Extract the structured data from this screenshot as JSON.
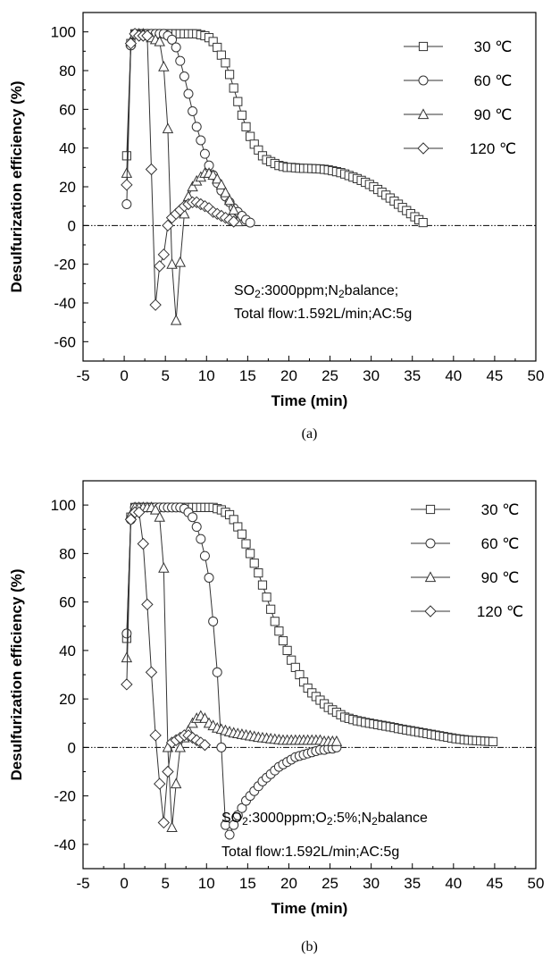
{
  "chart_data": [
    {
      "type": "line",
      "panel_label": "(a)",
      "xlabel": "Time (min)",
      "ylabel": "Desulfurization efficiency (%)",
      "xlim": [
        -5,
        50
      ],
      "ylim": [
        -70,
        110
      ],
      "xticks": [
        -5,
        0,
        5,
        10,
        15,
        20,
        25,
        30,
        35,
        40,
        45,
        50
      ],
      "yticks": [
        -60,
        -40,
        -20,
        0,
        20,
        40,
        60,
        80,
        100
      ],
      "zero_line": true,
      "legend_position": "top-right",
      "annotation": {
        "lines": [
          [
            {
              "t": "SO"
            },
            {
              "t": "2",
              "sub": true
            },
            {
              "t": ":3000ppm;N"
            },
            {
              "t": "2",
              "sub": true
            },
            {
              "t": "balance;"
            }
          ],
          [
            {
              "t": "Total flow:1.592L/min;AC:5g"
            }
          ]
        ]
      },
      "series": [
        {
          "name": "30 ℃",
          "marker": "square",
          "x": [
            0.3,
            0.8,
            1.3,
            1.8,
            2.3,
            2.8,
            3.3,
            3.8,
            4.3,
            4.8,
            5.3,
            5.8,
            6.3,
            6.8,
            7.3,
            7.8,
            8.3,
            8.8,
            9.3,
            9.8,
            10.3,
            10.8,
            11.3,
            11.8,
            12.3,
            12.8,
            13.3,
            13.8,
            14.3,
            14.8,
            15.3,
            15.8,
            16.3,
            16.8,
            17.3,
            17.8,
            18.3,
            18.8,
            19.3,
            19.8,
            20.3,
            20.8,
            21.3,
            21.8,
            22.3,
            22.8,
            23.3,
            23.8,
            24.3,
            24.8,
            25.3,
            25.8,
            26.3,
            26.8,
            27.3,
            27.8,
            28.3,
            28.8,
            29.3,
            29.8,
            30.3,
            30.8,
            31.3,
            31.8,
            32.3,
            32.8,
            33.3,
            33.8,
            34.3,
            34.8,
            35.3,
            35.8,
            36.3
          ],
          "y": [
            36,
            94,
            99,
            99,
            99,
            99,
            99,
            99,
            99,
            99,
            99,
            99,
            99,
            99,
            99,
            99,
            99,
            99,
            98.5,
            98,
            97,
            95,
            92,
            88,
            84,
            78,
            71,
            64,
            57,
            51,
            46,
            42,
            39,
            36,
            34,
            33,
            32,
            31,
            30.5,
            30,
            30,
            29.8,
            29.6,
            29.5,
            29.5,
            29.4,
            29.3,
            29.2,
            29,
            28.7,
            28.3,
            27.8,
            27.3,
            26.6,
            25.8,
            25,
            24.2,
            23.3,
            22.3,
            21.2,
            20,
            18.6,
            17.2,
            15.7,
            14.2,
            12.6,
            11,
            9.3,
            7.7,
            6.1,
            4.5,
            3,
            1.5
          ]
        },
        {
          "name": "60 ℃",
          "marker": "circle",
          "x": [
            0.3,
            0.8,
            1.3,
            1.8,
            2.3,
            2.8,
            3.3,
            3.8,
            4.3,
            4.8,
            5.3,
            5.8,
            6.3,
            6.8,
            7.3,
            7.8,
            8.3,
            8.8,
            9.3,
            9.8,
            10.3,
            10.8,
            11.3,
            11.8,
            12.3,
            12.8,
            13.3,
            13.8,
            14.3,
            14.8,
            15.3
          ],
          "y": [
            11,
            93,
            99,
            99,
            99,
            99,
            99,
            99,
            99,
            99,
            98,
            96,
            92,
            85,
            77,
            68,
            59,
            51,
            44,
            37,
            31,
            26,
            22,
            18,
            15,
            12,
            9,
            7,
            5,
            3,
            1.5
          ]
        },
        {
          "name": "90 ℃",
          "marker": "triangle",
          "x": [
            0.3,
            0.8,
            1.3,
            1.8,
            2.3,
            2.8,
            3.3,
            3.8,
            4.3,
            4.8,
            5.3,
            5.8,
            6.3,
            6.8,
            7.3,
            7.8,
            8.3,
            8.8,
            9.3,
            9.8,
            10.3,
            10.8,
            11.3,
            11.8,
            12.3,
            12.8,
            13.3,
            13.8
          ],
          "y": [
            27,
            95,
            99,
            99,
            99,
            98,
            97,
            96,
            95,
            82,
            50,
            -20,
            -49,
            -19,
            6,
            15,
            20,
            23,
            25,
            27,
            27,
            26,
            24,
            21,
            17,
            13,
            8,
            2
          ]
        },
        {
          "name": "120 ℃",
          "marker": "diamond",
          "x": [
            0.3,
            0.8,
            1.3,
            1.8,
            2.3,
            2.8,
            3.3,
            3.8,
            4.3,
            4.8,
            5.3,
            5.8,
            6.3,
            6.8,
            7.3,
            7.8,
            8.3,
            8.8,
            9.3,
            9.8,
            10.3,
            10.8,
            11.3,
            11.8,
            12.3,
            12.8,
            13.3
          ],
          "y": [
            21,
            94,
            99,
            98,
            98,
            98,
            29,
            -41,
            -21,
            -15,
            0,
            4,
            6,
            8,
            10,
            11,
            12,
            12,
            11,
            10,
            9,
            7,
            6,
            5,
            4,
            3,
            2
          ]
        }
      ]
    },
    {
      "type": "line",
      "panel_label": "(b)",
      "xlabel": "Time (min)",
      "ylabel": "Desulfurization efficiency (%)",
      "xlim": [
        -5,
        50
      ],
      "ylim": [
        -50,
        110
      ],
      "xticks": [
        -5,
        0,
        5,
        10,
        15,
        20,
        25,
        30,
        35,
        40,
        45,
        50
      ],
      "yticks": [
        -40,
        -20,
        0,
        20,
        40,
        60,
        80,
        100
      ],
      "zero_line": true,
      "legend_position": "top-right",
      "annotation": {
        "lines": [
          [
            {
              "t": "SO"
            },
            {
              "t": "2",
              "sub": true
            },
            {
              "t": ":3000ppm;O"
            },
            {
              "t": "2",
              "sub": true
            },
            {
              "t": ":5%;N"
            },
            {
              "t": "2",
              "sub": true
            },
            {
              "t": "balance"
            }
          ],
          [
            {
              "t": "Total flow:1.592L/min;AC:5g"
            }
          ]
        ]
      },
      "series": [
        {
          "name": "30 ℃",
          "marker": "square",
          "x": [
            0.3,
            0.8,
            1.3,
            1.8,
            2.3,
            2.8,
            3.3,
            3.8,
            4.3,
            4.8,
            5.3,
            5.8,
            6.3,
            6.8,
            7.3,
            7.8,
            8.3,
            8.8,
            9.3,
            9.8,
            10.3,
            10.8,
            11.3,
            11.8,
            12.3,
            12.8,
            13.3,
            13.8,
            14.3,
            14.8,
            15.3,
            15.8,
            16.3,
            16.8,
            17.3,
            17.8,
            18.3,
            18.8,
            19.3,
            19.8,
            20.3,
            20.8,
            21.3,
            21.8,
            22.3,
            22.8,
            23.3,
            23.8,
            24.3,
            24.8,
            25.3,
            25.8,
            26.3,
            26.8,
            27.3,
            27.8,
            28.3,
            28.8,
            29.3,
            29.8,
            30.3,
            30.8,
            31.3,
            31.8,
            32.3,
            32.8,
            33.3,
            33.8,
            34.3,
            34.8,
            35.3,
            35.8,
            36.3,
            36.8,
            37.3,
            37.8,
            38.3,
            38.8,
            39.3,
            39.8,
            40.3,
            40.8,
            41.3,
            41.8,
            42.3,
            42.8,
            43.3,
            43.8,
            44.3,
            44.8
          ],
          "y": [
            45,
            95,
            99,
            99,
            99,
            99,
            99,
            99,
            99,
            99,
            99,
            99,
            99,
            99,
            99,
            99,
            99,
            99,
            99,
            99,
            99,
            99,
            98.5,
            98,
            97,
            96,
            94,
            91,
            88,
            84,
            80,
            76,
            72,
            67,
            62,
            57,
            52,
            48,
            44,
            40,
            36,
            33,
            30,
            27,
            24.5,
            22.5,
            21,
            19.5,
            18,
            16.5,
            15.5,
            14.5,
            13.5,
            12.5,
            12,
            11.5,
            11,
            10.7,
            10.3,
            10,
            9.7,
            9.4,
            9.1,
            8.8,
            8.5,
            8.2,
            7.8,
            7.5,
            7.2,
            6.9,
            6.6,
            6.3,
            6,
            5.7,
            5.4,
            5.1,
            4.8,
            4.5,
            4.2,
            3.9,
            3.6,
            3.4,
            3.2,
            3,
            2.9,
            2.8,
            2.7,
            2.6,
            2.5,
            2.4
          ]
        },
        {
          "name": "60 ℃",
          "marker": "circle",
          "x": [
            0.3,
            0.8,
            1.3,
            1.8,
            2.3,
            2.8,
            3.3,
            3.8,
            4.3,
            4.8,
            5.3,
            5.8,
            6.3,
            6.8,
            7.3,
            7.8,
            8.3,
            8.8,
            9.3,
            9.8,
            10.3,
            10.8,
            11.3,
            11.8,
            12.3,
            12.8,
            13.3,
            13.8,
            14.3,
            14.8,
            15.3,
            15.8,
            16.3,
            16.8,
            17.3,
            17.8,
            18.3,
            18.8,
            19.3,
            19.8,
            20.3,
            20.8,
            21.3,
            21.8,
            22.3,
            22.8,
            23.3,
            23.8,
            24.3,
            24.8,
            25.3,
            25.8
          ],
          "y": [
            47,
            94,
            99,
            99,
            99,
            99,
            99,
            99,
            99,
            99,
            99,
            99,
            99,
            99,
            98.5,
            97,
            95,
            91,
            86,
            79,
            70,
            52,
            31,
            0,
            -32,
            -36,
            -32,
            -28,
            -25,
            -22,
            -20,
            -18,
            -16,
            -14,
            -12.5,
            -11,
            -9.5,
            -8,
            -7,
            -6,
            -5,
            -4,
            -3.5,
            -3,
            -2.5,
            -2,
            -1.5,
            -1,
            -1,
            -0.5,
            -0.5,
            0
          ]
        },
        {
          "name": "90 ℃",
          "marker": "triangle",
          "x": [
            0.3,
            0.8,
            1.3,
            1.8,
            2.3,
            2.8,
            3.3,
            3.8,
            4.3,
            4.8,
            5.3,
            5.8,
            6.3,
            6.8,
            7.3,
            7.8,
            8.3,
            8.8,
            9.3,
            9.8,
            10.3,
            10.8,
            11.3,
            11.8,
            12.3,
            12.8,
            13.3,
            13.8,
            14.3,
            14.8,
            15.3,
            15.8,
            16.3,
            16.8,
            17.3,
            17.8,
            18.3,
            18.8,
            19.3,
            19.8,
            20.3,
            20.8,
            21.3,
            21.8,
            22.3,
            22.8,
            23.3,
            23.8,
            24.3,
            24.8,
            25.3,
            25.8
          ],
          "y": [
            37,
            96,
            99,
            99,
            99,
            99,
            99,
            98,
            95,
            74,
            0,
            -33,
            -15,
            0,
            4,
            7,
            10,
            12,
            13,
            12,
            10,
            9,
            8,
            7.5,
            7,
            6.5,
            6,
            5.7,
            5.4,
            5.1,
            4.8,
            4.5,
            4.2,
            4,
            3.8,
            3.6,
            3.4,
            3.2,
            3,
            3,
            3,
            3,
            3,
            3,
            3,
            3,
            3,
            3,
            2.5,
            2.5,
            2.5,
            2.5
          ]
        },
        {
          "name": "120 ℃",
          "marker": "diamond",
          "x": [
            0.3,
            0.8,
            1.3,
            1.8,
            2.3,
            2.8,
            3.3,
            3.8,
            4.3,
            4.8,
            5.3,
            5.8,
            6.3,
            6.8,
            7.3,
            7.8,
            8.3,
            8.8,
            9.3,
            9.8
          ],
          "y": [
            26,
            94,
            97,
            97,
            84,
            59,
            31,
            5,
            -15,
            -31,
            -10,
            2,
            3,
            4,
            5,
            5,
            4,
            3,
            2,
            1
          ]
        }
      ]
    }
  ]
}
